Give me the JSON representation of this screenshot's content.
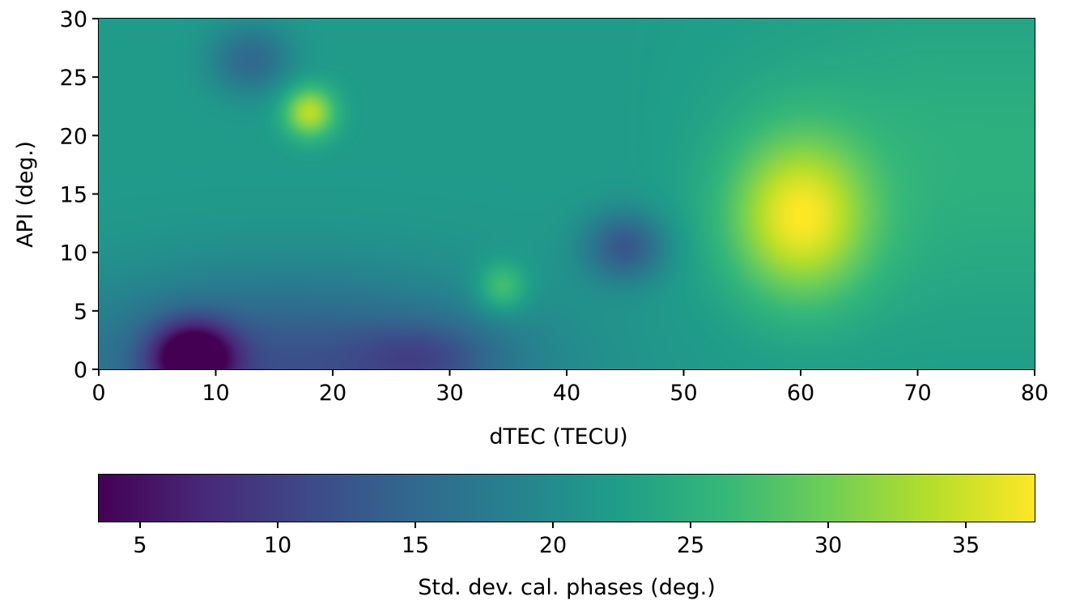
{
  "chart_data": {
    "type": "heatmap",
    "xlabel": "dTEC (TECU)",
    "ylabel": "API (deg.)",
    "xlim": [
      0,
      80
    ],
    "ylim": [
      0,
      30
    ],
    "xticks": [
      "0",
      "10",
      "20",
      "30",
      "40",
      "50",
      "60",
      "70",
      "80"
    ],
    "yticks": [
      "0",
      "5",
      "10",
      "15",
      "20",
      "25",
      "30"
    ],
    "colormap": "viridis",
    "colorbar": {
      "label": "Std. dev. cal. phases (deg.)",
      "range": [
        3.5,
        37.5
      ],
      "ticks": [
        "5",
        "10",
        "15",
        "20",
        "25",
        "30",
        "35"
      ],
      "orientation": "horizontal",
      "placement": "bottom"
    },
    "field_description": "smooth interpolated field of standard deviation values",
    "hotspots": [
      {
        "x": 60,
        "y": 13,
        "value": 36
      },
      {
        "x": 18,
        "y": 22,
        "value": 34
      },
      {
        "x": 34.5,
        "y": 7,
        "value": 29
      },
      {
        "x": 45,
        "y": 10.5,
        "value": 13
      },
      {
        "x": 13,
        "y": 26.5,
        "value": 15
      },
      {
        "x": 8,
        "y": 1,
        "value": 4
      }
    ]
  },
  "colors": {
    "viridis": [
      "#440154",
      "#482878",
      "#3e4989",
      "#31688e",
      "#26828e",
      "#1f9e89",
      "#35b779",
      "#6ece58",
      "#b5de2b",
      "#fde725"
    ]
  }
}
